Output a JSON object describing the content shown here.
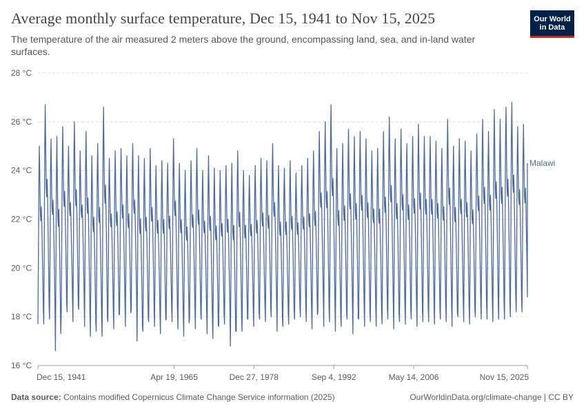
{
  "header": {
    "title": "Average monthly surface temperature, Dec 15, 1941 to Nov 15, 2025",
    "subtitle": "The temperature of the air measured 2 meters above the ground, encompassing land, sea, and in-land water surfaces.",
    "logo_line1": "Our World",
    "logo_line2": "in Data"
  },
  "footer": {
    "source_label": "Data source:",
    "source_text": "Contains modified Copernicus Climate Change Service information (2025)",
    "link": "OurWorldinData.org/climate-change | CC BY"
  },
  "colors": {
    "series": "#4c6a9c",
    "grid": "#dddddd",
    "axis": "#666666",
    "text": "#5b5b5b"
  },
  "chart_data": {
    "type": "line",
    "title": "Average monthly surface temperature, Dec 15, 1941 to Nov 15, 2025",
    "xlabel": "",
    "ylabel": "",
    "x_start_year": 1941.95,
    "x_end_year": 2025.87,
    "xlim": [
      1941.95,
      2025.87
    ],
    "ylim": [
      16,
      28
    ],
    "y_ticks": [
      16,
      18,
      20,
      22,
      24,
      26,
      28
    ],
    "y_tick_labels": [
      "16 °C",
      "18 °C",
      "20 °C",
      "22 °C",
      "24 °C",
      "26 °C",
      "28 °C"
    ],
    "x_ticks": [
      {
        "label": "Dec 15, 1941",
        "year": 1941.95
      },
      {
        "label": "Apr 19, 1965",
        "year": 1965.3
      },
      {
        "label": "Dec 27, 1978",
        "year": 1978.98
      },
      {
        "label": "Sep 4, 1992",
        "year": 1992.68
      },
      {
        "label": "May 14, 2006",
        "year": 2006.37
      },
      {
        "label": "Nov 15, 2025",
        "year": 2025.87
      }
    ],
    "series": [
      {
        "name": "Malawi",
        "annual_max": [
          25.0,
          26.7,
          25.3,
          25.4,
          25.8,
          25.0,
          26.0,
          24.8,
          25.6,
          24.6,
          25.1,
          26.6,
          24.5,
          24.8,
          24.9,
          24.6,
          25.1,
          24.6,
          24.5,
          24.9,
          24.2,
          24.4,
          24.3,
          25.3,
          24.3,
          24.0,
          24.4,
          24.9,
          24.0,
          24.6,
          24.1,
          24.0,
          24.2,
          24.3,
          24.8,
          24.0,
          23.8,
          24.2,
          24.5,
          24.4,
          25.1,
          24.2,
          24.1,
          24.4,
          23.9,
          24.2,
          24.5,
          24.8,
          25.6,
          26.0,
          26.7,
          24.9,
          25.1,
          25.7,
          25.4,
          25.6,
          25.3,
          24.8,
          24.9,
          25.6,
          26.2,
          25.3,
          25.7,
          25.1,
          25.4,
          25.9,
          25.4,
          25.4,
          25.2,
          24.9,
          26.1,
          25.0,
          25.3,
          25.2,
          24.8,
          25.5,
          26.1,
          25.6,
          26.5,
          26.1,
          26.6,
          26.8,
          25.8,
          25.9
        ],
        "annual_min": [
          17.7,
          17.7,
          17.9,
          16.6,
          18.0,
          18.2,
          17.8,
          18.3,
          17.6,
          17.2,
          17.4,
          17.2,
          17.8,
          17.5,
          18.1,
          17.6,
          18.3,
          17.0,
          17.4,
          17.8,
          17.6,
          17.3,
          17.9,
          17.8,
          17.5,
          17.2,
          17.9,
          17.5,
          17.9,
          17.3,
          17.1,
          17.6,
          17.7,
          16.8,
          17.4,
          17.4,
          17.9,
          17.6,
          17.9,
          17.8,
          18.0,
          17.4,
          17.6,
          17.7,
          17.9,
          18.0,
          17.8,
          17.5,
          18.2,
          17.6,
          17.8,
          17.4,
          17.6,
          17.9,
          17.3,
          17.9,
          17.6,
          17.8,
          17.6,
          17.7,
          17.9,
          17.5,
          17.8,
          17.7,
          17.9,
          17.6,
          17.8,
          17.8,
          17.7,
          17.9,
          17.8,
          17.6,
          18.0,
          17.8,
          17.7,
          18.0,
          17.9,
          17.9,
          17.8,
          17.9,
          17.9,
          18.0,
          18.2,
          18.2
        ],
        "final_value": 24.3
      }
    ]
  }
}
